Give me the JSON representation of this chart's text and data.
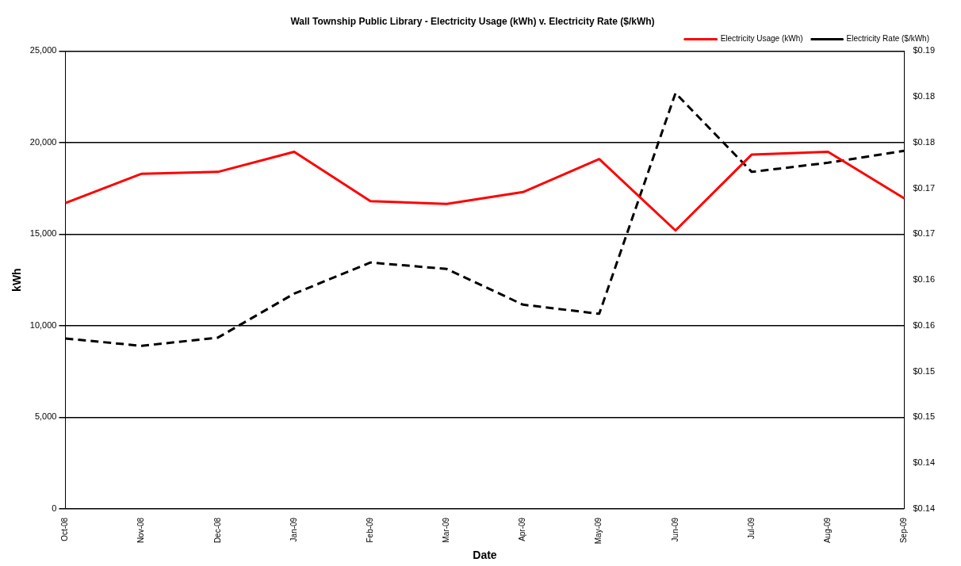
{
  "chart_data": {
    "type": "line",
    "title": "Wall Township Public Library - Electricity Usage (kWh) v. Electricity Rate ($/kWh)",
    "xlabel": "Date",
    "ylabel": "kWh",
    "categories": [
      "Oct-08",
      "Nov-08",
      "Dec-08",
      "Jan-09",
      "Feb-09",
      "Mar-09",
      "Apr-09",
      "May-09",
      "Jun-09",
      "Jul-09",
      "Aug-09",
      "Sep-09"
    ],
    "series": [
      {
        "name": "Electricity Usage (kWh)",
        "color": "#ff0000",
        "line_style": "solid",
        "values": [
          16700,
          18300,
          18400,
          19500,
          16800,
          16650,
          17300,
          19100,
          15200,
          19350,
          19500,
          16950
        ]
      },
      {
        "name": "Electricity Rate ($/kWh)",
        "color": "#000000",
        "line_style": "dashed",
        "axis": "y2",
        "values": [
          0.1586,
          0.1578,
          0.1587,
          0.1635,
          0.1669,
          0.1662,
          0.1623,
          0.1613,
          0.1854,
          0.1768,
          0.1778,
          0.1791
        ]
      }
    ],
    "ylim": [
      0,
      25000
    ],
    "yticks": [
      {
        "value": 0,
        "label": "0"
      },
      {
        "value": 5000,
        "label": "5,000"
      },
      {
        "value": 10000,
        "label": "10,000"
      },
      {
        "value": 15000,
        "label": "15,000"
      },
      {
        "value": 20000,
        "label": "20,000"
      },
      {
        "value": 25000,
        "label": "25,000"
      }
    ],
    "y2lim": [
      0.14,
      0.19
    ],
    "y2ticks": [
      {
        "value": 0.14,
        "label": "$0.14"
      },
      {
        "value": 0.145,
        "label": "$0.14"
      },
      {
        "value": 0.15,
        "label": "$0.15"
      },
      {
        "value": 0.155,
        "label": "$0.15"
      },
      {
        "value": 0.16,
        "label": "$0.16"
      },
      {
        "value": 0.165,
        "label": "$0.16"
      },
      {
        "value": 0.17,
        "label": "$0.17"
      },
      {
        "value": 0.175,
        "label": "$0.17"
      },
      {
        "value": 0.18,
        "label": "$0.18"
      },
      {
        "value": 0.185,
        "label": "$0.18"
      },
      {
        "value": 0.19,
        "label": "$0.19"
      }
    ],
    "grid": "y",
    "legend": "top right",
    "marker": "none"
  }
}
